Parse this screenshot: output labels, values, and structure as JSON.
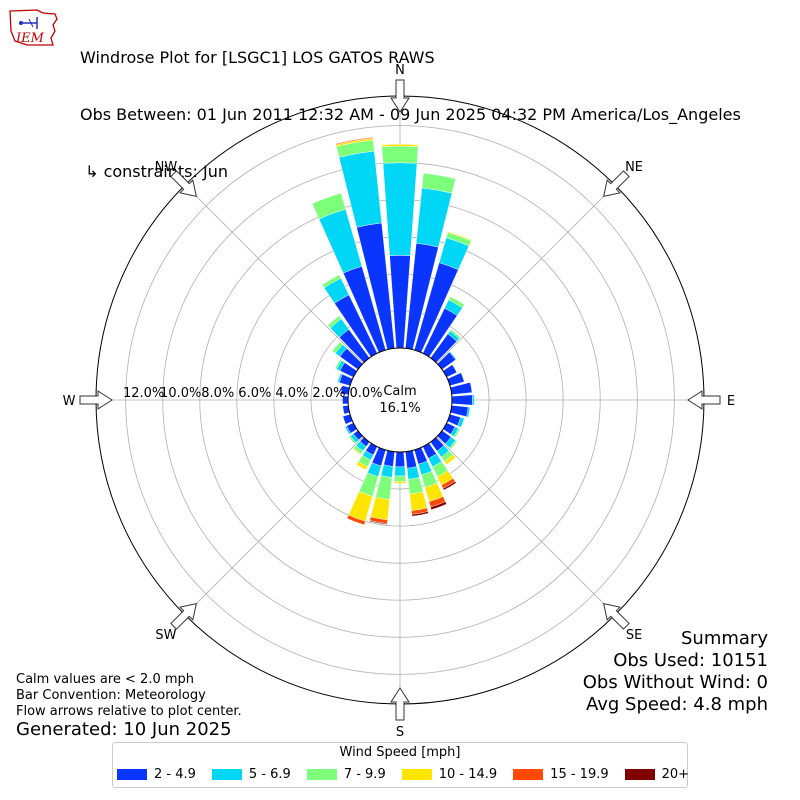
{
  "logo": {
    "text": "IEM"
  },
  "title": {
    "line1": "Windrose Plot for [LSGC1] LOS GATOS RAWS",
    "line2": "Obs Between: 01 Jun 2011 12:32 AM - 09 Jun 2025 04:32 PM America/Los_Angeles",
    "line3": " ↳ constraints: Jun"
  },
  "footnote": {
    "line1": "Calm values are < 2.0 mph",
    "line2": "Bar Convention: Meteorology",
    "line3": "Flow arrows relative to plot center."
  },
  "generated": "Generated: 10 Jun 2025",
  "summary": {
    "heading": "Summary",
    "obs_used": "Obs Used: 10151",
    "obs_without_wind": "Obs Without Wind: 0",
    "avg_speed": "Avg Speed: 4.8 mph"
  },
  "legend": {
    "title": "Wind Speed [mph]"
  },
  "chart_data": {
    "type": "windrose",
    "directions": [
      "N",
      "NE",
      "E",
      "SE",
      "S",
      "SW",
      "W",
      "NW"
    ],
    "radial_ticks": [
      "0.0%",
      "2.0%",
      "4.0%",
      "6.0%",
      "8.0%",
      "10.0%",
      "12.0%"
    ],
    "radial_max": 13.6,
    "calm": {
      "label": "Calm",
      "value": "16.1%"
    },
    "bins": [
      {
        "name": "2 - 4.9",
        "color": "#0a35ff"
      },
      {
        "name": "5 - 6.9",
        "color": "#00d6f6"
      },
      {
        "name": "7 - 9.9",
        "color": "#7dff7a"
      },
      {
        "name": "10 - 14.9",
        "color": "#ffe500"
      },
      {
        "name": "15 - 19.9",
        "color": "#ff4a00"
      },
      {
        "name": "20+",
        "color": "#800000"
      }
    ],
    "sectors_deg": [
      0,
      10,
      20,
      30,
      40,
      50,
      60,
      70,
      80,
      90,
      100,
      110,
      120,
      130,
      140,
      150,
      160,
      170,
      180,
      190,
      200,
      210,
      220,
      230,
      240,
      250,
      260,
      270,
      280,
      290,
      300,
      310,
      320,
      330,
      340,
      350
    ],
    "values": [
      [
        5.0,
        5.0,
        0.9,
        0.1,
        0.0,
        0.0
      ],
      [
        5.7,
        3.0,
        0.8,
        0.0,
        0.0,
        0.0
      ],
      [
        4.9,
        1.4,
        0.3,
        0.05,
        0.0,
        0.0
      ],
      [
        2.7,
        0.5,
        0.2,
        0.0,
        0.0,
        0.0
      ],
      [
        1.6,
        0.2,
        0.1,
        0.0,
        0.0,
        0.0
      ],
      [
        0.9,
        0.05,
        0.0,
        0.0,
        0.0,
        0.0
      ],
      [
        0.6,
        0.0,
        0.0,
        0.0,
        0.0,
        0.0
      ],
      [
        0.8,
        0.0,
        0.0,
        0.0,
        0.0,
        0.0
      ],
      [
        1.1,
        0.0,
        0.0,
        0.0,
        0.0,
        0.0
      ],
      [
        1.1,
        0.1,
        0.0,
        0.0,
        0.0,
        0.0
      ],
      [
        0.9,
        0.1,
        0.0,
        0.0,
        0.0,
        0.0
      ],
      [
        0.6,
        0.2,
        0.0,
        0.0,
        0.0,
        0.0
      ],
      [
        0.5,
        0.2,
        0.1,
        0.0,
        0.0,
        0.0
      ],
      [
        0.6,
        0.3,
        0.1,
        0.0,
        0.0,
        0.0
      ],
      [
        0.6,
        0.4,
        0.3,
        0.2,
        0.0,
        0.0
      ],
      [
        0.7,
        0.5,
        0.6,
        0.5,
        0.2,
        0.1
      ],
      [
        0.8,
        0.6,
        0.7,
        0.8,
        0.3,
        0.15
      ],
      [
        0.9,
        0.6,
        0.8,
        0.9,
        0.2,
        0.1
      ],
      [
        0.8,
        0.5,
        0.3,
        0.1,
        0.0,
        0.0
      ],
      [
        0.8,
        0.6,
        1.2,
        1.1,
        0.2,
        0.05
      ],
      [
        0.9,
        0.6,
        1.1,
        1.4,
        0.2,
        0.0
      ],
      [
        0.5,
        0.3,
        0.4,
        0.2,
        0.0,
        0.0
      ],
      [
        0.3,
        0.3,
        0.2,
        0.05,
        0.0,
        0.0
      ],
      [
        0.3,
        0.2,
        0.1,
        0.0,
        0.0,
        0.0
      ],
      [
        0.4,
        0.1,
        0.0,
        0.0,
        0.0,
        0.0
      ],
      [
        0.4,
        0.0,
        0.0,
        0.0,
        0.0,
        0.0
      ],
      [
        0.3,
        0.0,
        0.0,
        0.0,
        0.0,
        0.0
      ],
      [
        0.3,
        0.0,
        0.0,
        0.0,
        0.0,
        0.0
      ],
      [
        0.4,
        0.0,
        0.0,
        0.0,
        0.0,
        0.0
      ],
      [
        0.6,
        0.1,
        0.0,
        0.0,
        0.0,
        0.0
      ],
      [
        0.8,
        0.2,
        0.1,
        0.0,
        0.0,
        0.0
      ],
      [
        1.2,
        0.3,
        0.2,
        0.0,
        0.0,
        0.0
      ],
      [
        1.9,
        0.7,
        0.2,
        0.0,
        0.0,
        0.0
      ],
      [
        3.5,
        1.0,
        0.2,
        0.0,
        0.0,
        0.0
      ],
      [
        4.7,
        3.2,
        0.9,
        0.0,
        0.0,
        0.0
      ],
      [
        6.8,
        3.9,
        0.6,
        0.1,
        0.05,
        0.0
      ]
    ]
  }
}
